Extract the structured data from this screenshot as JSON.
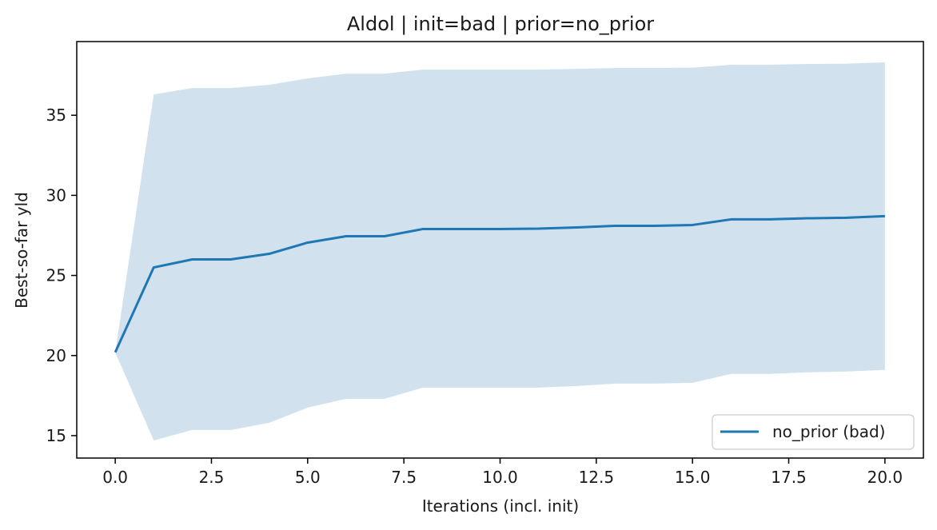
{
  "chart_data": {
    "type": "line",
    "title": "Aldol | init=bad | prior=no_prior",
    "xlabel": "Iterations (incl. init)",
    "ylabel": "Best-so-far yld",
    "xlim": [
      -1.0,
      21.0
    ],
    "ylim": [
      13.6,
      39.6
    ],
    "x_ticks": [
      0,
      2.5,
      5,
      7.5,
      10,
      12.5,
      15,
      17.5,
      20
    ],
    "x_tick_labels": [
      "0.0",
      "2.5",
      "5.0",
      "7.5",
      "10.0",
      "12.5",
      "15.0",
      "17.5",
      "20.0"
    ],
    "y_ticks": [
      15,
      20,
      25,
      30,
      35
    ],
    "y_tick_labels": [
      "15",
      "20",
      "25",
      "30",
      "35"
    ],
    "grid": false,
    "legend_position": "lower-right",
    "x": [
      0,
      1,
      2,
      3,
      4,
      5,
      6,
      7,
      8,
      9,
      10,
      11,
      12,
      13,
      14,
      15,
      16,
      17,
      18,
      19,
      20
    ],
    "series": [
      {
        "name": "no_prior (bad)",
        "color": "#1f77b4",
        "values": [
          20.2,
          25.5,
          26.0,
          26.0,
          26.35,
          27.05,
          27.45,
          27.45,
          27.9,
          27.9,
          27.9,
          27.92,
          28.0,
          28.1,
          28.1,
          28.15,
          28.5,
          28.5,
          28.57,
          28.6,
          28.7
        ],
        "band_upper": [
          20.2,
          36.3,
          36.7,
          36.7,
          36.9,
          37.3,
          37.6,
          37.6,
          37.85,
          37.85,
          37.85,
          37.85,
          37.9,
          37.95,
          37.95,
          37.97,
          38.15,
          38.15,
          38.2,
          38.22,
          38.3
        ],
        "band_lower": [
          20.2,
          14.7,
          15.35,
          15.35,
          15.8,
          16.75,
          17.3,
          17.3,
          18.0,
          18.0,
          18.0,
          18.0,
          18.1,
          18.25,
          18.25,
          18.3,
          18.85,
          18.85,
          18.95,
          19.0,
          19.1
        ],
        "band_color": "#d1e2ee"
      }
    ]
  }
}
